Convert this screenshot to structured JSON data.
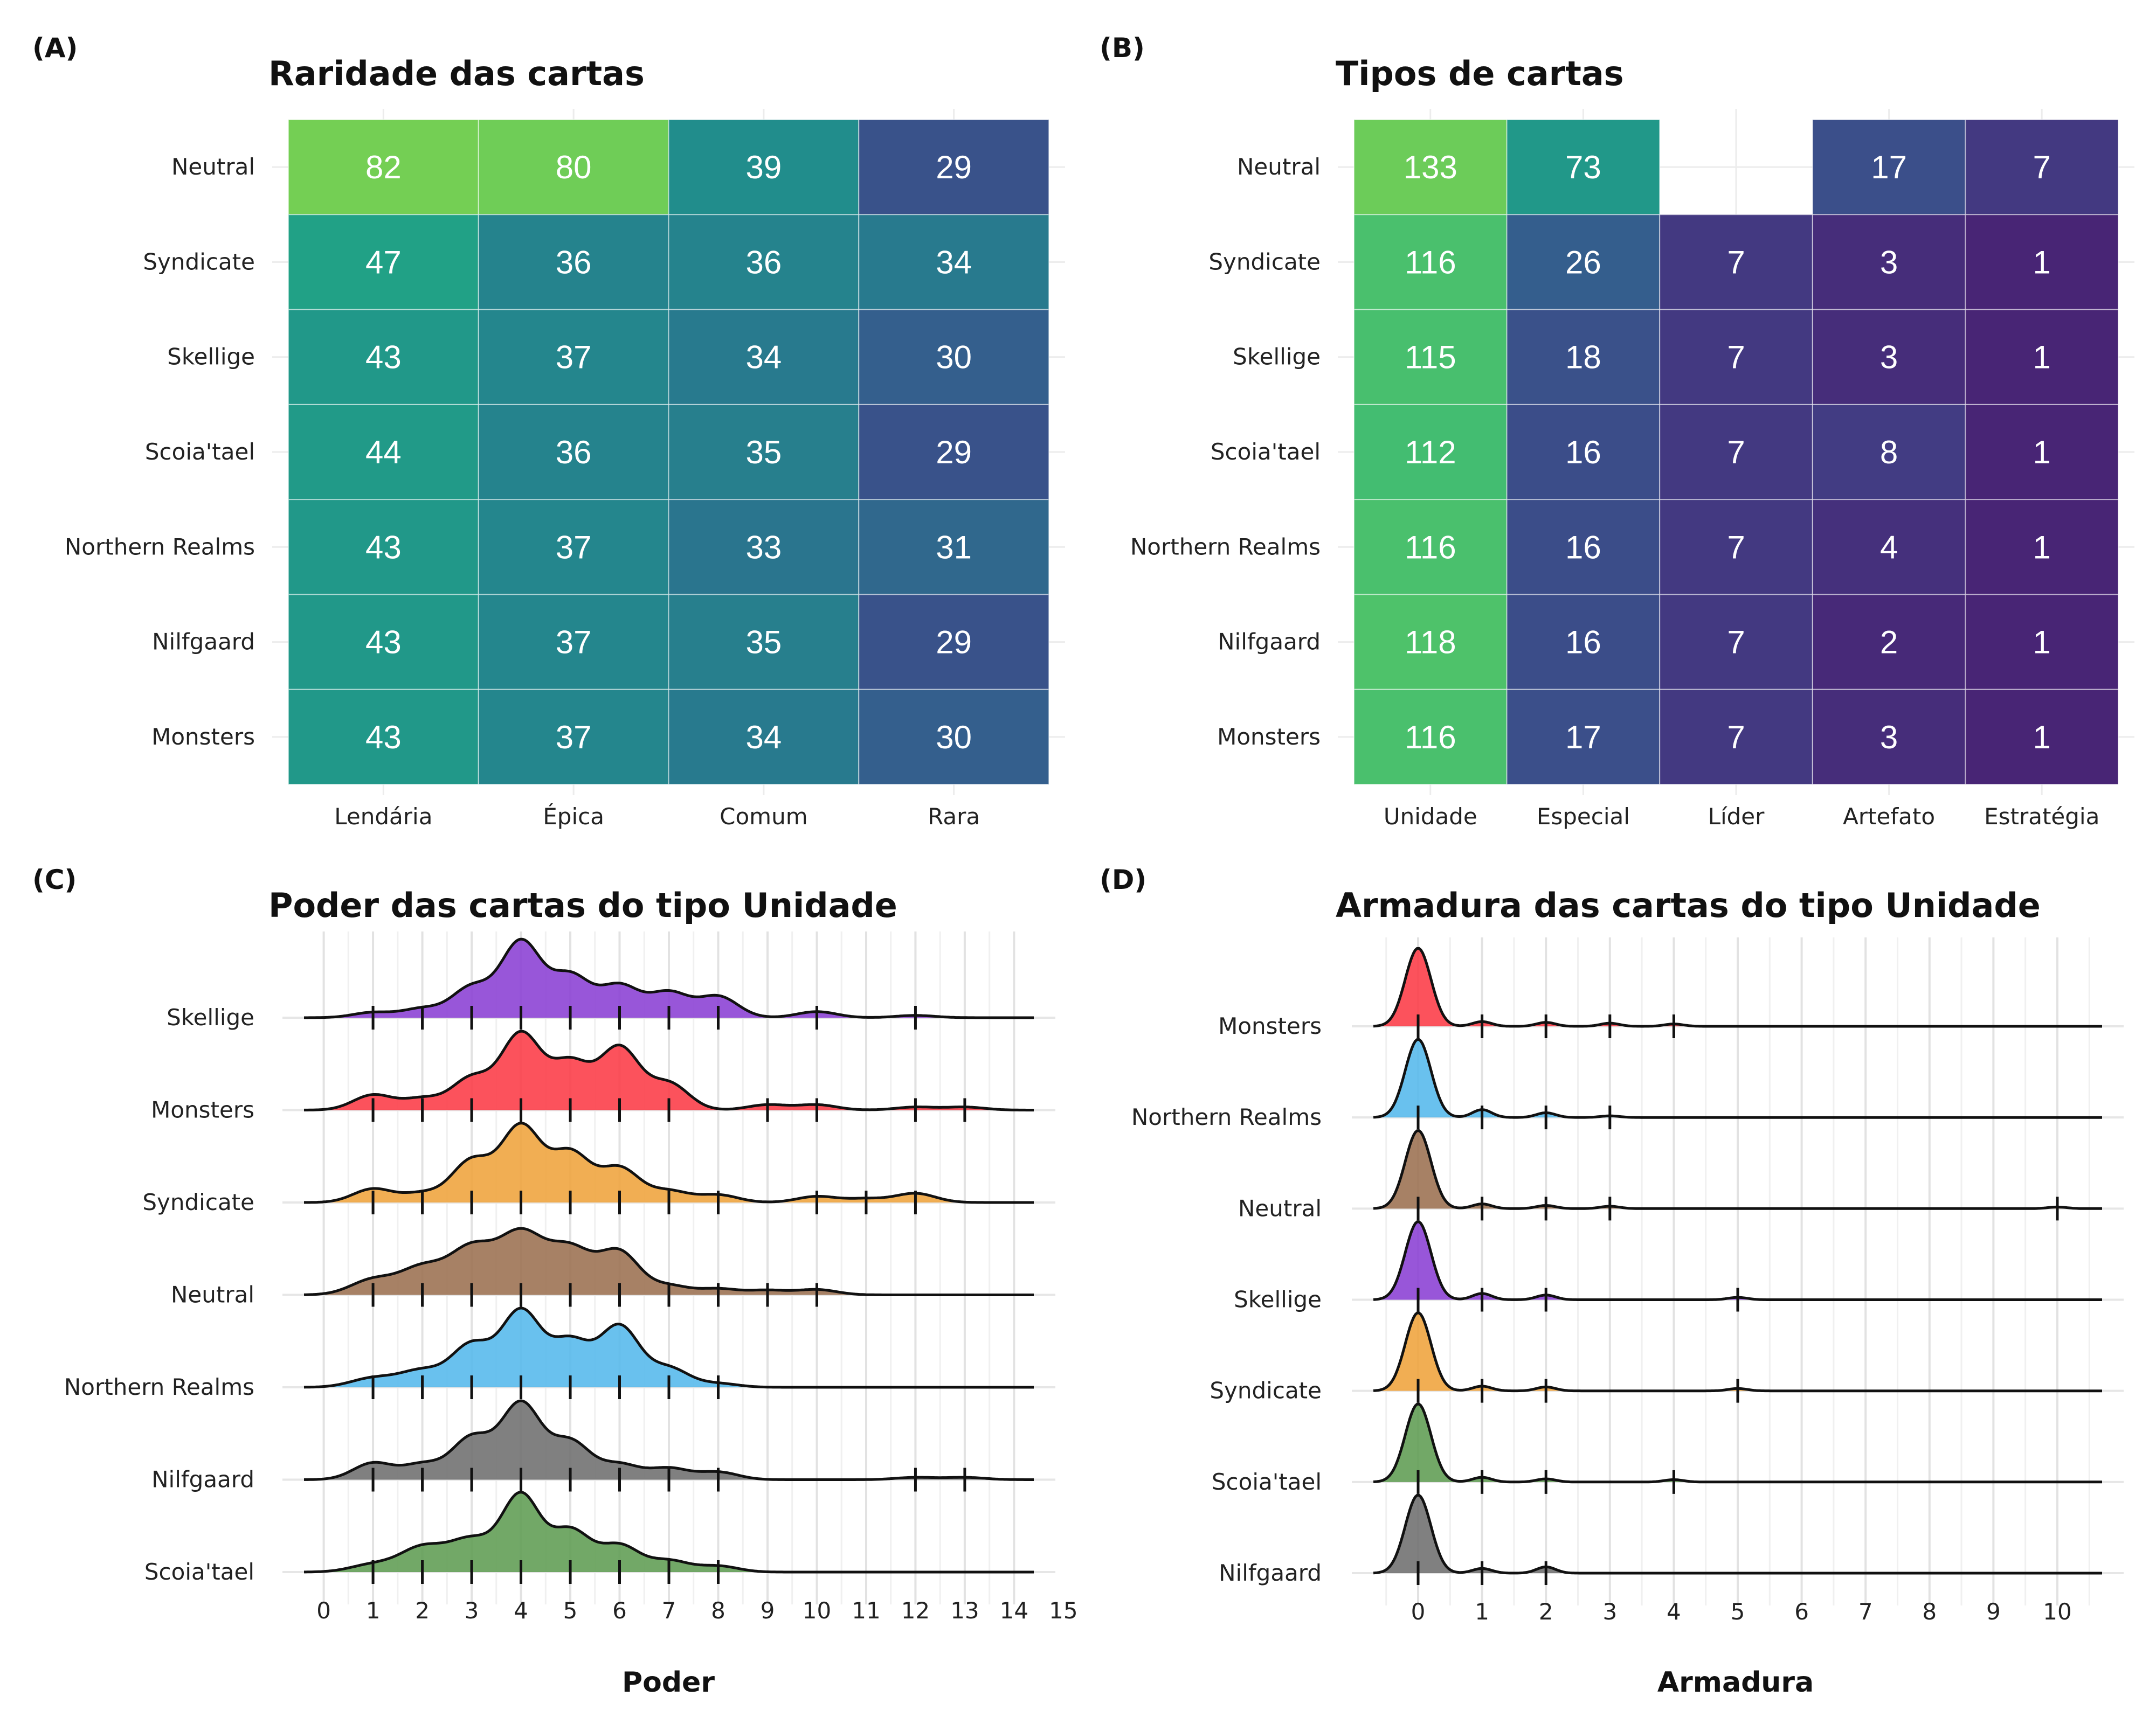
{
  "chart_data": [
    {
      "panel": "(A)",
      "type": "heatmap",
      "title": "Raridade das cartas",
      "x_categories": [
        "Lendária",
        "Épica",
        "Comum",
        "Rara"
      ],
      "y_categories": [
        "Neutral",
        "Syndicate",
        "Skellige",
        "Scoia'tael",
        "Northern Realms",
        "Nilfgaard",
        "Monsters"
      ],
      "values": [
        [
          82,
          80,
          39,
          29
        ],
        [
          47,
          36,
          36,
          34
        ],
        [
          43,
          37,
          34,
          30
        ],
        [
          44,
          36,
          35,
          29
        ],
        [
          43,
          37,
          33,
          31
        ],
        [
          43,
          37,
          35,
          29
        ],
        [
          43,
          37,
          34,
          30
        ]
      ],
      "colorscale": "viridis",
      "grid": true
    },
    {
      "panel": "(B)",
      "type": "heatmap",
      "title": "Tipos de cartas",
      "x_categories": [
        "Unidade",
        "Especial",
        "Líder",
        "Artefato",
        "Estratégia"
      ],
      "y_categories": [
        "Neutral",
        "Syndicate",
        "Skellige",
        "Scoia'tael",
        "Northern Realms",
        "Nilfgaard",
        "Monsters"
      ],
      "values": [
        [
          133,
          73,
          null,
          17,
          7
        ],
        [
          116,
          26,
          7,
          3,
          1
        ],
        [
          115,
          18,
          7,
          3,
          1
        ],
        [
          112,
          16,
          7,
          8,
          1
        ],
        [
          116,
          16,
          7,
          4,
          1
        ],
        [
          118,
          16,
          7,
          2,
          1
        ],
        [
          116,
          17,
          7,
          3,
          1
        ]
      ],
      "colorscale": "viridis",
      "grid": true
    },
    {
      "panel": "(C)",
      "type": "area",
      "subtype": "ridgeline density",
      "title": "Poder das cartas do tipo Unidade",
      "xlabel": "Poder",
      "x_ticks": [
        0,
        1,
        2,
        3,
        4,
        5,
        6,
        7,
        8,
        9,
        10,
        11,
        12,
        13,
        14,
        15
      ],
      "xlim": [
        -0.4,
        14.4
      ],
      "series": [
        {
          "name": "Skellige",
          "color": "#8a3fd4",
          "peaks": [
            [
              1,
              0.07,
              0.4
            ],
            [
              2,
              0.12,
              0.4
            ],
            [
              3,
              0.4,
              0.4
            ],
            [
              4,
              1.0,
              0.4
            ],
            [
              5,
              0.55,
              0.4
            ],
            [
              6,
              0.42,
              0.4
            ],
            [
              7,
              0.33,
              0.4
            ],
            [
              8,
              0.28,
              0.4
            ],
            [
              10,
              0.08,
              0.4
            ],
            [
              12,
              0.03,
              0.4
            ]
          ],
          "rug": [
            1,
            2,
            3,
            4,
            5,
            6,
            7,
            8,
            10,
            12
          ]
        },
        {
          "name": "Monsters",
          "color": "#fc3a46",
          "peaks": [
            [
              1,
              0.2,
              0.4
            ],
            [
              2,
              0.15,
              0.4
            ],
            [
              3,
              0.42,
              0.4
            ],
            [
              4,
              1.0,
              0.4
            ],
            [
              5,
              0.62,
              0.4
            ],
            [
              6,
              0.82,
              0.4
            ],
            [
              7,
              0.35,
              0.4
            ],
            [
              9,
              0.07,
              0.4
            ],
            [
              10,
              0.07,
              0.4
            ],
            [
              12,
              0.04,
              0.4
            ],
            [
              13,
              0.04,
              0.4
            ]
          ],
          "rug": [
            1,
            2,
            3,
            4,
            5,
            6,
            7,
            9,
            10,
            12,
            13
          ]
        },
        {
          "name": "Syndicate",
          "color": "#efa33b",
          "peaks": [
            [
              1,
              0.18,
              0.4
            ],
            [
              2,
              0.12,
              0.4
            ],
            [
              3,
              0.55,
              0.4
            ],
            [
              4,
              1.0,
              0.4
            ],
            [
              5,
              0.65,
              0.4
            ],
            [
              6,
              0.45,
              0.4
            ],
            [
              7,
              0.15,
              0.4
            ],
            [
              8,
              0.1,
              0.4
            ],
            [
              10,
              0.08,
              0.4
            ],
            [
              11,
              0.05,
              0.4
            ],
            [
              12,
              0.12,
              0.4
            ]
          ],
          "rug": [
            1,
            2,
            3,
            4,
            5,
            6,
            7,
            8,
            10,
            11,
            12
          ]
        },
        {
          "name": "Neutral",
          "color": "#9b7050",
          "peaks": [
            [
              1,
              0.2,
              0.45
            ],
            [
              2,
              0.35,
              0.45
            ],
            [
              3,
              0.6,
              0.45
            ],
            [
              4,
              0.78,
              0.45
            ],
            [
              5,
              0.6,
              0.45
            ],
            [
              6,
              0.55,
              0.4
            ],
            [
              7,
              0.12,
              0.4
            ],
            [
              8,
              0.08,
              0.4
            ],
            [
              9,
              0.06,
              0.4
            ],
            [
              10,
              0.07,
              0.4
            ]
          ],
          "rug": [
            1,
            2,
            3,
            4,
            5,
            6,
            7,
            8,
            9,
            10
          ]
        },
        {
          "name": "Northern Realms",
          "color": "#54b8ec",
          "peaks": [
            [
              1,
              0.12,
              0.45
            ],
            [
              2,
              0.22,
              0.45
            ],
            [
              3,
              0.55,
              0.4
            ],
            [
              4,
              1.0,
              0.4
            ],
            [
              5,
              0.6,
              0.4
            ],
            [
              6,
              0.8,
              0.4
            ],
            [
              7,
              0.25,
              0.4
            ],
            [
              8,
              0.05,
              0.4
            ]
          ],
          "rug": [
            1,
            2,
            3,
            4,
            5,
            6,
            7,
            8
          ]
        },
        {
          "name": "Nilfgaard",
          "color": "#6e6e6e",
          "peaks": [
            [
              1,
              0.22,
              0.4
            ],
            [
              2,
              0.2,
              0.4
            ],
            [
              3,
              0.55,
              0.4
            ],
            [
              4,
              1.0,
              0.4
            ],
            [
              5,
              0.5,
              0.4
            ],
            [
              6,
              0.2,
              0.4
            ],
            [
              7,
              0.15,
              0.4
            ],
            [
              8,
              0.1,
              0.4
            ],
            [
              12,
              0.03,
              0.4
            ],
            [
              13,
              0.03,
              0.4
            ]
          ],
          "rug": [
            1,
            2,
            3,
            4,
            5,
            6,
            7,
            8,
            12,
            13
          ]
        },
        {
          "name": "Scoia'tael",
          "color": "#5e9c52",
          "peaks": [
            [
              1,
              0.1,
              0.45
            ],
            [
              2,
              0.32,
              0.45
            ],
            [
              3,
              0.42,
              0.45
            ],
            [
              4,
              1.0,
              0.38
            ],
            [
              5,
              0.55,
              0.4
            ],
            [
              6,
              0.35,
              0.4
            ],
            [
              7,
              0.15,
              0.4
            ],
            [
              8,
              0.08,
              0.4
            ]
          ],
          "rug": [
            1,
            2,
            3,
            4,
            5,
            6,
            7,
            8
          ]
        }
      ],
      "grid": true
    },
    {
      "panel": "(D)",
      "type": "area",
      "subtype": "ridgeline density",
      "title": "Armadura das cartas do tipo Unidade",
      "xlabel": "Armadura",
      "x_ticks": [
        0,
        1,
        2,
        3,
        4,
        5,
        6,
        7,
        8,
        9,
        10
      ],
      "xlim": [
        -0.7,
        10.7
      ],
      "series": [
        {
          "name": "Monsters",
          "color": "#fc3a46",
          "peaks": [
            [
              0,
              1.0,
              0.2
            ],
            [
              1,
              0.06,
              0.15
            ],
            [
              2,
              0.05,
              0.15
            ],
            [
              3,
              0.04,
              0.15
            ],
            [
              4,
              0.03,
              0.15
            ]
          ],
          "rug": [
            0,
            1,
            2,
            3,
            4
          ]
        },
        {
          "name": "Northern Realms",
          "color": "#54b8ec",
          "peaks": [
            [
              0,
              1.0,
              0.2
            ],
            [
              1,
              0.1,
              0.15
            ],
            [
              2,
              0.06,
              0.15
            ],
            [
              3,
              0.02,
              0.15
            ]
          ],
          "rug": [
            0,
            1,
            2,
            3
          ]
        },
        {
          "name": "Neutral",
          "color": "#9b7050",
          "peaks": [
            [
              0,
              1.0,
              0.2
            ],
            [
              1,
              0.06,
              0.15
            ],
            [
              2,
              0.04,
              0.15
            ],
            [
              3,
              0.03,
              0.15
            ],
            [
              10,
              0.02,
              0.15
            ]
          ],
          "rug": [
            0,
            1,
            2,
            3,
            10
          ]
        },
        {
          "name": "Skellige",
          "color": "#8a3fd4",
          "peaks": [
            [
              0,
              1.0,
              0.2
            ],
            [
              1,
              0.08,
              0.15
            ],
            [
              2,
              0.06,
              0.15
            ],
            [
              5,
              0.03,
              0.15
            ]
          ],
          "rug": [
            0,
            1,
            2,
            5
          ]
        },
        {
          "name": "Syndicate",
          "color": "#efa33b",
          "peaks": [
            [
              0,
              1.0,
              0.2
            ],
            [
              1,
              0.06,
              0.15
            ],
            [
              2,
              0.05,
              0.15
            ],
            [
              5,
              0.03,
              0.15
            ]
          ],
          "rug": [
            0,
            1,
            2,
            5
          ]
        },
        {
          "name": "Scoia'tael",
          "color": "#5e9c52",
          "peaks": [
            [
              0,
              1.0,
              0.2
            ],
            [
              1,
              0.06,
              0.15
            ],
            [
              2,
              0.04,
              0.15
            ],
            [
              4,
              0.03,
              0.15
            ]
          ],
          "rug": [
            0,
            1,
            2,
            4
          ]
        },
        {
          "name": "Nilfgaard",
          "color": "#6e6e6e",
          "peaks": [
            [
              0,
              1.0,
              0.2
            ],
            [
              1,
              0.06,
              0.15
            ],
            [
              2,
              0.08,
              0.15
            ]
          ],
          "rug": [
            0,
            1,
            2
          ]
        }
      ],
      "grid": true
    }
  ]
}
